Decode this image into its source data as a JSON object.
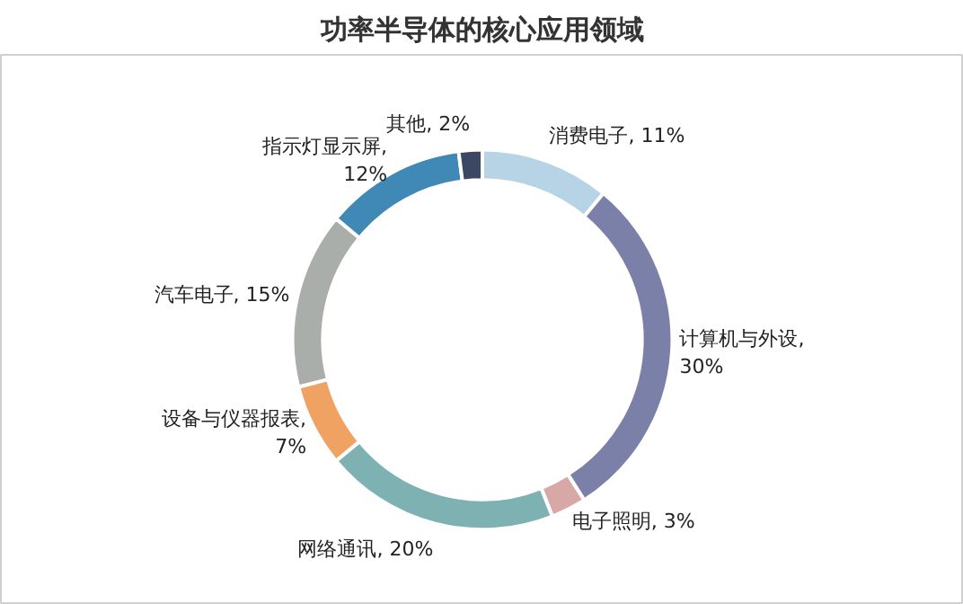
{
  "chart_data": {
    "type": "donut",
    "title": "功率半导体的核心应用领域",
    "categories": [
      "消费电子",
      "计算机与外设",
      "电子照明",
      "网络通讯",
      "设备与仪器报表",
      "汽车电子",
      "指示灯显示屏",
      "其他"
    ],
    "values": [
      11,
      30,
      3,
      20,
      7,
      15,
      12,
      2
    ],
    "colors": [
      "#b7d3e6",
      "#7a80a8",
      "#d8a8a6",
      "#7eb1b1",
      "#f0a262",
      "#a9aeab",
      "#4088b6",
      "#3b4763"
    ],
    "value_labels": [
      ", 11%",
      ",\n30%",
      ", 3%",
      ", 20%",
      ",\n7%",
      ", 15%",
      ",\n12%",
      ", 2%"
    ]
  }
}
